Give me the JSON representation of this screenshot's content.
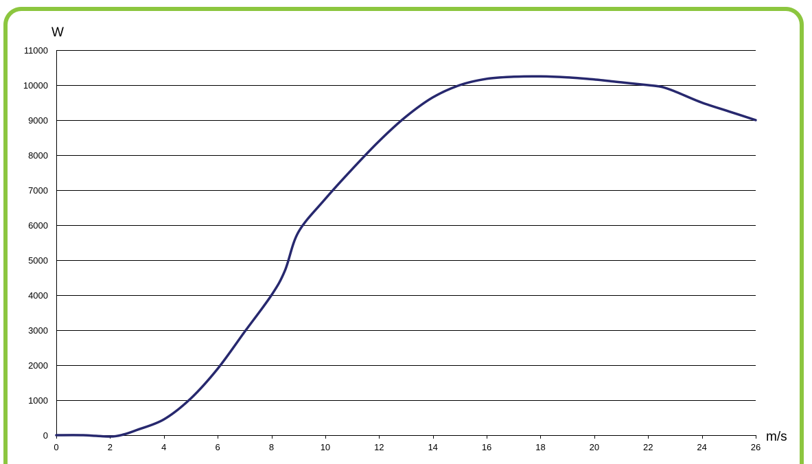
{
  "colors": {
    "border": "#8cc63f",
    "line": "#27286e",
    "grid": "#000000"
  },
  "chart_data": {
    "type": "line",
    "title": "",
    "xlabel": "m/s",
    "ylabel": "W",
    "xlim": [
      0,
      26
    ],
    "ylim": [
      0,
      11000
    ],
    "x_ticks": [
      0,
      2,
      4,
      6,
      8,
      10,
      12,
      14,
      16,
      18,
      20,
      22,
      24,
      26
    ],
    "y_ticks": [
      0,
      1000,
      2000,
      3000,
      4000,
      5000,
      6000,
      7000,
      8000,
      9000,
      10000,
      11000
    ],
    "grid": "horizontal",
    "legend": "none",
    "series": [
      {
        "x": [
          0,
          1,
          2,
          2.5,
          3,
          4,
          5,
          6,
          7,
          8,
          8.5,
          9,
          10,
          11,
          12,
          13,
          14,
          15,
          16,
          17,
          18,
          19,
          20,
          21,
          22,
          22.5,
          23,
          24,
          25,
          26
        ],
        "y": [
          0,
          0,
          -40,
          20,
          150,
          450,
          1050,
          1900,
          2950,
          4000,
          4700,
          5800,
          6750,
          7600,
          8400,
          9100,
          9650,
          10000,
          10180,
          10240,
          10250,
          10220,
          10160,
          10080,
          10000,
          9950,
          9820,
          9500,
          9250,
          9000
        ]
      }
    ]
  }
}
